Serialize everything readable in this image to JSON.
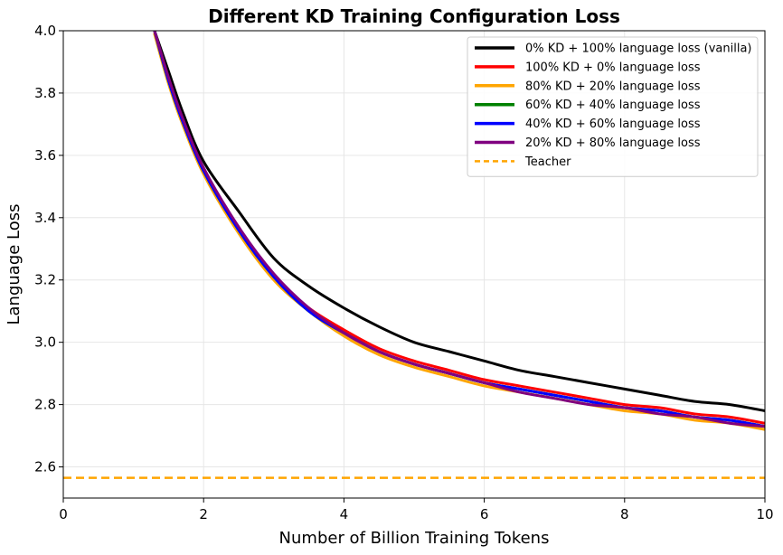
{
  "chart_data": {
    "type": "line",
    "title": "Different KD Training Configuration Loss",
    "xlabel": "Number of Billion Training Tokens",
    "ylabel": "Language Loss",
    "xlim": [
      0,
      10
    ],
    "ylim": [
      2.5,
      4.0
    ],
    "xticks": [
      0,
      2,
      4,
      6,
      8,
      10
    ],
    "xtick_labels": [
      "0",
      "2",
      "4",
      "6",
      "8",
      "10"
    ],
    "yticks": [
      2.6,
      2.8,
      3.0,
      3.2,
      3.4,
      3.6,
      3.8,
      4.0
    ],
    "ytick_labels": [
      "2.6",
      "2.8",
      "3.0",
      "3.2",
      "3.4",
      "3.6",
      "3.8",
      "4.0"
    ],
    "grid": true,
    "legend_position": "top-right",
    "series": [
      {
        "name": "0% KD + 100% language loss (vanilla)",
        "color": "#000000",
        "x": [
          1.3,
          1.5,
          1.7,
          2.0,
          2.5,
          3.0,
          3.5,
          4.0,
          4.5,
          5.0,
          5.5,
          6.0,
          6.5,
          7.0,
          7.5,
          8.0,
          8.5,
          9.0,
          9.5,
          10.0
        ],
        "y": [
          4.0,
          3.87,
          3.74,
          3.58,
          3.42,
          3.27,
          3.18,
          3.11,
          3.05,
          3.0,
          2.97,
          2.94,
          2.91,
          2.89,
          2.87,
          2.85,
          2.83,
          2.81,
          2.8,
          2.78
        ]
      },
      {
        "name": "100% KD + 0% language loss",
        "color": "#ff0000",
        "x": [
          1.3,
          1.5,
          1.7,
          2.0,
          2.5,
          3.0,
          3.5,
          4.0,
          4.5,
          5.0,
          5.5,
          6.0,
          6.5,
          7.0,
          7.5,
          8.0,
          8.5,
          9.0,
          9.5,
          10.0
        ],
        "y": [
          4.0,
          3.84,
          3.71,
          3.55,
          3.36,
          3.21,
          3.11,
          3.04,
          2.98,
          2.94,
          2.91,
          2.88,
          2.86,
          2.84,
          2.82,
          2.8,
          2.79,
          2.77,
          2.76,
          2.74
        ]
      },
      {
        "name": "80% KD + 20% language loss",
        "color": "#ffa500",
        "x": [
          1.3,
          1.5,
          1.7,
          2.0,
          2.5,
          3.0,
          3.5,
          4.0,
          4.5,
          5.0,
          5.5,
          6.0,
          6.5,
          7.0,
          7.5,
          8.0,
          8.5,
          9.0,
          9.5,
          10.0
        ],
        "y": [
          3.99,
          3.83,
          3.7,
          3.54,
          3.35,
          3.2,
          3.1,
          3.02,
          2.96,
          2.92,
          2.89,
          2.86,
          2.84,
          2.82,
          2.8,
          2.78,
          2.77,
          2.75,
          2.74,
          2.72
        ]
      },
      {
        "name": "60% KD + 40% language loss",
        "color": "#008000",
        "x": [
          1.3,
          1.5,
          1.7,
          2.0,
          2.5,
          3.0,
          3.5,
          4.0,
          4.5,
          5.0,
          5.5,
          6.0,
          6.5,
          7.0,
          7.5,
          8.0,
          8.5,
          9.0,
          9.5,
          10.0
        ],
        "y": [
          4.0,
          3.84,
          3.71,
          3.55,
          3.36,
          3.21,
          3.1,
          3.03,
          2.97,
          2.93,
          2.9,
          2.87,
          2.85,
          2.83,
          2.81,
          2.79,
          2.78,
          2.76,
          2.75,
          2.73
        ]
      },
      {
        "name": "40% KD + 60% language loss",
        "color": "#0000ff",
        "x": [
          1.3,
          1.5,
          1.7,
          2.0,
          2.5,
          3.0,
          3.5,
          4.0,
          4.5,
          5.0,
          5.5,
          6.0,
          6.5,
          7.0,
          7.5,
          8.0,
          8.5,
          9.0,
          9.5,
          10.0
        ],
        "y": [
          4.0,
          3.84,
          3.71,
          3.55,
          3.36,
          3.21,
          3.1,
          3.03,
          2.97,
          2.93,
          2.9,
          2.87,
          2.85,
          2.83,
          2.81,
          2.79,
          2.78,
          2.76,
          2.75,
          2.73
        ]
      },
      {
        "name": "20% KD + 80% language loss",
        "color": "#800080",
        "x": [
          1.3,
          1.5,
          1.7,
          2.0,
          2.5,
          3.0,
          3.5,
          4.0,
          4.5,
          5.0,
          5.5,
          6.0,
          6.5,
          7.0,
          7.5,
          8.0,
          8.5,
          9.0,
          9.5,
          10.0
        ],
        "y": [
          4.0,
          3.85,
          3.72,
          3.56,
          3.37,
          3.22,
          3.11,
          3.03,
          2.97,
          2.93,
          2.9,
          2.87,
          2.84,
          2.82,
          2.8,
          2.79,
          2.77,
          2.76,
          2.74,
          2.73
        ]
      }
    ],
    "reference_lines": [
      {
        "name": "Teacher",
        "color": "#ffa500",
        "y": 2.565,
        "style": "dashed"
      }
    ]
  }
}
